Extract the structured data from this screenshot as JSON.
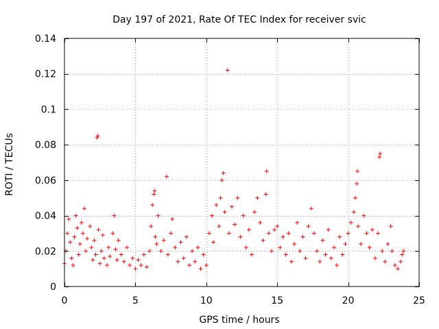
{
  "chart_data": {
    "type": "scatter",
    "title": "Day 197 of 2021, Rate Of TEC Index for receiver svic",
    "xlabel": "GPS time / hours",
    "ylabel": "ROTI / TECUs",
    "xlim": [
      0,
      25
    ],
    "ylim": [
      0,
      0.14
    ],
    "xticks": [
      0,
      5,
      10,
      15,
      20,
      25
    ],
    "xtick_labels": [
      "0",
      "5",
      "10",
      "15",
      "20",
      "25"
    ],
    "yticks": [
      0,
      0.02,
      0.04,
      0.06,
      0.08,
      0.1,
      0.12,
      0.14
    ],
    "ytick_labels": [
      "0",
      "0.02",
      "0.04",
      "0.06",
      "0.08",
      "0.1",
      "0.12",
      "0.14"
    ],
    "grid": true,
    "marker": "+",
    "series": [
      {
        "name": "ROTI",
        "color": "#ff0000",
        "points": [
          [
            0.0,
            0.013
          ],
          [
            0.1,
            0.02
          ],
          [
            0.2,
            0.03
          ],
          [
            0.3,
            0.038
          ],
          [
            0.4,
            0.025
          ],
          [
            0.5,
            0.016
          ],
          [
            0.6,
            0.012
          ],
          [
            0.7,
            0.028
          ],
          [
            0.8,
            0.04
          ],
          [
            0.9,
            0.033
          ],
          [
            1.0,
            0.018
          ],
          [
            1.1,
            0.024
          ],
          [
            1.2,
            0.036
          ],
          [
            1.3,
            0.03
          ],
          [
            1.4,
            0.044
          ],
          [
            1.5,
            0.02
          ],
          [
            1.6,
            0.027
          ],
          [
            1.8,
            0.034
          ],
          [
            1.9,
            0.022
          ],
          [
            2.0,
            0.015
          ],
          [
            2.1,
            0.026
          ],
          [
            2.2,
            0.018
          ],
          [
            2.3,
            0.084
          ],
          [
            2.35,
            0.085
          ],
          [
            2.4,
            0.032
          ],
          [
            2.5,
            0.013
          ],
          [
            2.6,
            0.02
          ],
          [
            2.7,
            0.029
          ],
          [
            2.8,
            0.016
          ],
          [
            3.0,
            0.012
          ],
          [
            3.1,
            0.022
          ],
          [
            3.2,
            0.017
          ],
          [
            3.4,
            0.03
          ],
          [
            3.5,
            0.04
          ],
          [
            3.6,
            0.021
          ],
          [
            3.7,
            0.015
          ],
          [
            3.8,
            0.026
          ],
          [
            4.0,
            0.018
          ],
          [
            4.2,
            0.014
          ],
          [
            4.4,
            0.022
          ],
          [
            4.6,
            0.012
          ],
          [
            4.8,
            0.016
          ],
          [
            5.0,
            0.01
          ],
          [
            5.2,
            0.015
          ],
          [
            5.4,
            0.012
          ],
          [
            5.6,
            0.018
          ],
          [
            5.8,
            0.011
          ],
          [
            6.0,
            0.02
          ],
          [
            6.1,
            0.034
          ],
          [
            6.2,
            0.046
          ],
          [
            6.3,
            0.052
          ],
          [
            6.35,
            0.054
          ],
          [
            6.4,
            0.028
          ],
          [
            6.5,
            0.024
          ],
          [
            6.6,
            0.04
          ],
          [
            6.8,
            0.02
          ],
          [
            7.0,
            0.026
          ],
          [
            7.2,
            0.062
          ],
          [
            7.3,
            0.018
          ],
          [
            7.5,
            0.03
          ],
          [
            7.6,
            0.038
          ],
          [
            7.8,
            0.022
          ],
          [
            8.0,
            0.014
          ],
          [
            8.2,
            0.025
          ],
          [
            8.4,
            0.016
          ],
          [
            8.6,
            0.028
          ],
          [
            8.8,
            0.012
          ],
          [
            9.0,
            0.02
          ],
          [
            9.2,
            0.014
          ],
          [
            9.4,
            0.022
          ],
          [
            9.6,
            0.01
          ],
          [
            9.8,
            0.018
          ],
          [
            10.0,
            0.012
          ],
          [
            10.2,
            0.03
          ],
          [
            10.4,
            0.04
          ],
          [
            10.5,
            0.025
          ],
          [
            10.7,
            0.046
          ],
          [
            10.9,
            0.034
          ],
          [
            11.0,
            0.05
          ],
          [
            11.1,
            0.06
          ],
          [
            11.2,
            0.064
          ],
          [
            11.3,
            0.042
          ],
          [
            11.5,
            0.122
          ],
          [
            11.6,
            0.03
          ],
          [
            11.8,
            0.045
          ],
          [
            12.0,
            0.035
          ],
          [
            12.2,
            0.05
          ],
          [
            12.4,
            0.028
          ],
          [
            12.6,
            0.04
          ],
          [
            12.8,
            0.022
          ],
          [
            13.0,
            0.032
          ],
          [
            13.2,
            0.018
          ],
          [
            13.4,
            0.042
          ],
          [
            13.6,
            0.05
          ],
          [
            13.8,
            0.036
          ],
          [
            14.0,
            0.026
          ],
          [
            14.2,
            0.052
          ],
          [
            14.25,
            0.065
          ],
          [
            14.4,
            0.03
          ],
          [
            14.6,
            0.02
          ],
          [
            14.8,
            0.032
          ],
          [
            15.0,
            0.034
          ],
          [
            15.2,
            0.022
          ],
          [
            15.4,
            0.028
          ],
          [
            15.6,
            0.018
          ],
          [
            15.8,
            0.03
          ],
          [
            16.0,
            0.014
          ],
          [
            16.2,
            0.024
          ],
          [
            16.4,
            0.036
          ],
          [
            16.6,
            0.02
          ],
          [
            16.8,
            0.028
          ],
          [
            17.0,
            0.016
          ],
          [
            17.2,
            0.034
          ],
          [
            17.4,
            0.044
          ],
          [
            17.6,
            0.03
          ],
          [
            17.8,
            0.02
          ],
          [
            18.0,
            0.014
          ],
          [
            18.2,
            0.026
          ],
          [
            18.4,
            0.018
          ],
          [
            18.6,
            0.032
          ],
          [
            18.8,
            0.016
          ],
          [
            19.0,
            0.022
          ],
          [
            19.2,
            0.012
          ],
          [
            19.4,
            0.028
          ],
          [
            19.6,
            0.018
          ],
          [
            19.8,
            0.024
          ],
          [
            20.0,
            0.03
          ],
          [
            20.2,
            0.036
          ],
          [
            20.4,
            0.042
          ],
          [
            20.5,
            0.05
          ],
          [
            20.6,
            0.058
          ],
          [
            20.65,
            0.065
          ],
          [
            20.7,
            0.034
          ],
          [
            20.9,
            0.024
          ],
          [
            21.1,
            0.04
          ],
          [
            21.3,
            0.03
          ],
          [
            21.5,
            0.022
          ],
          [
            21.7,
            0.032
          ],
          [
            21.9,
            0.016
          ],
          [
            22.1,
            0.03
          ],
          [
            22.2,
            0.073
          ],
          [
            22.25,
            0.075
          ],
          [
            22.4,
            0.02
          ],
          [
            22.6,
            0.014
          ],
          [
            22.8,
            0.024
          ],
          [
            23.0,
            0.034
          ],
          [
            23.1,
            0.02
          ],
          [
            23.3,
            0.012
          ],
          [
            23.5,
            0.01
          ],
          [
            23.7,
            0.014
          ],
          [
            23.8,
            0.018
          ],
          [
            23.9,
            0.02
          ]
        ]
      }
    ]
  }
}
